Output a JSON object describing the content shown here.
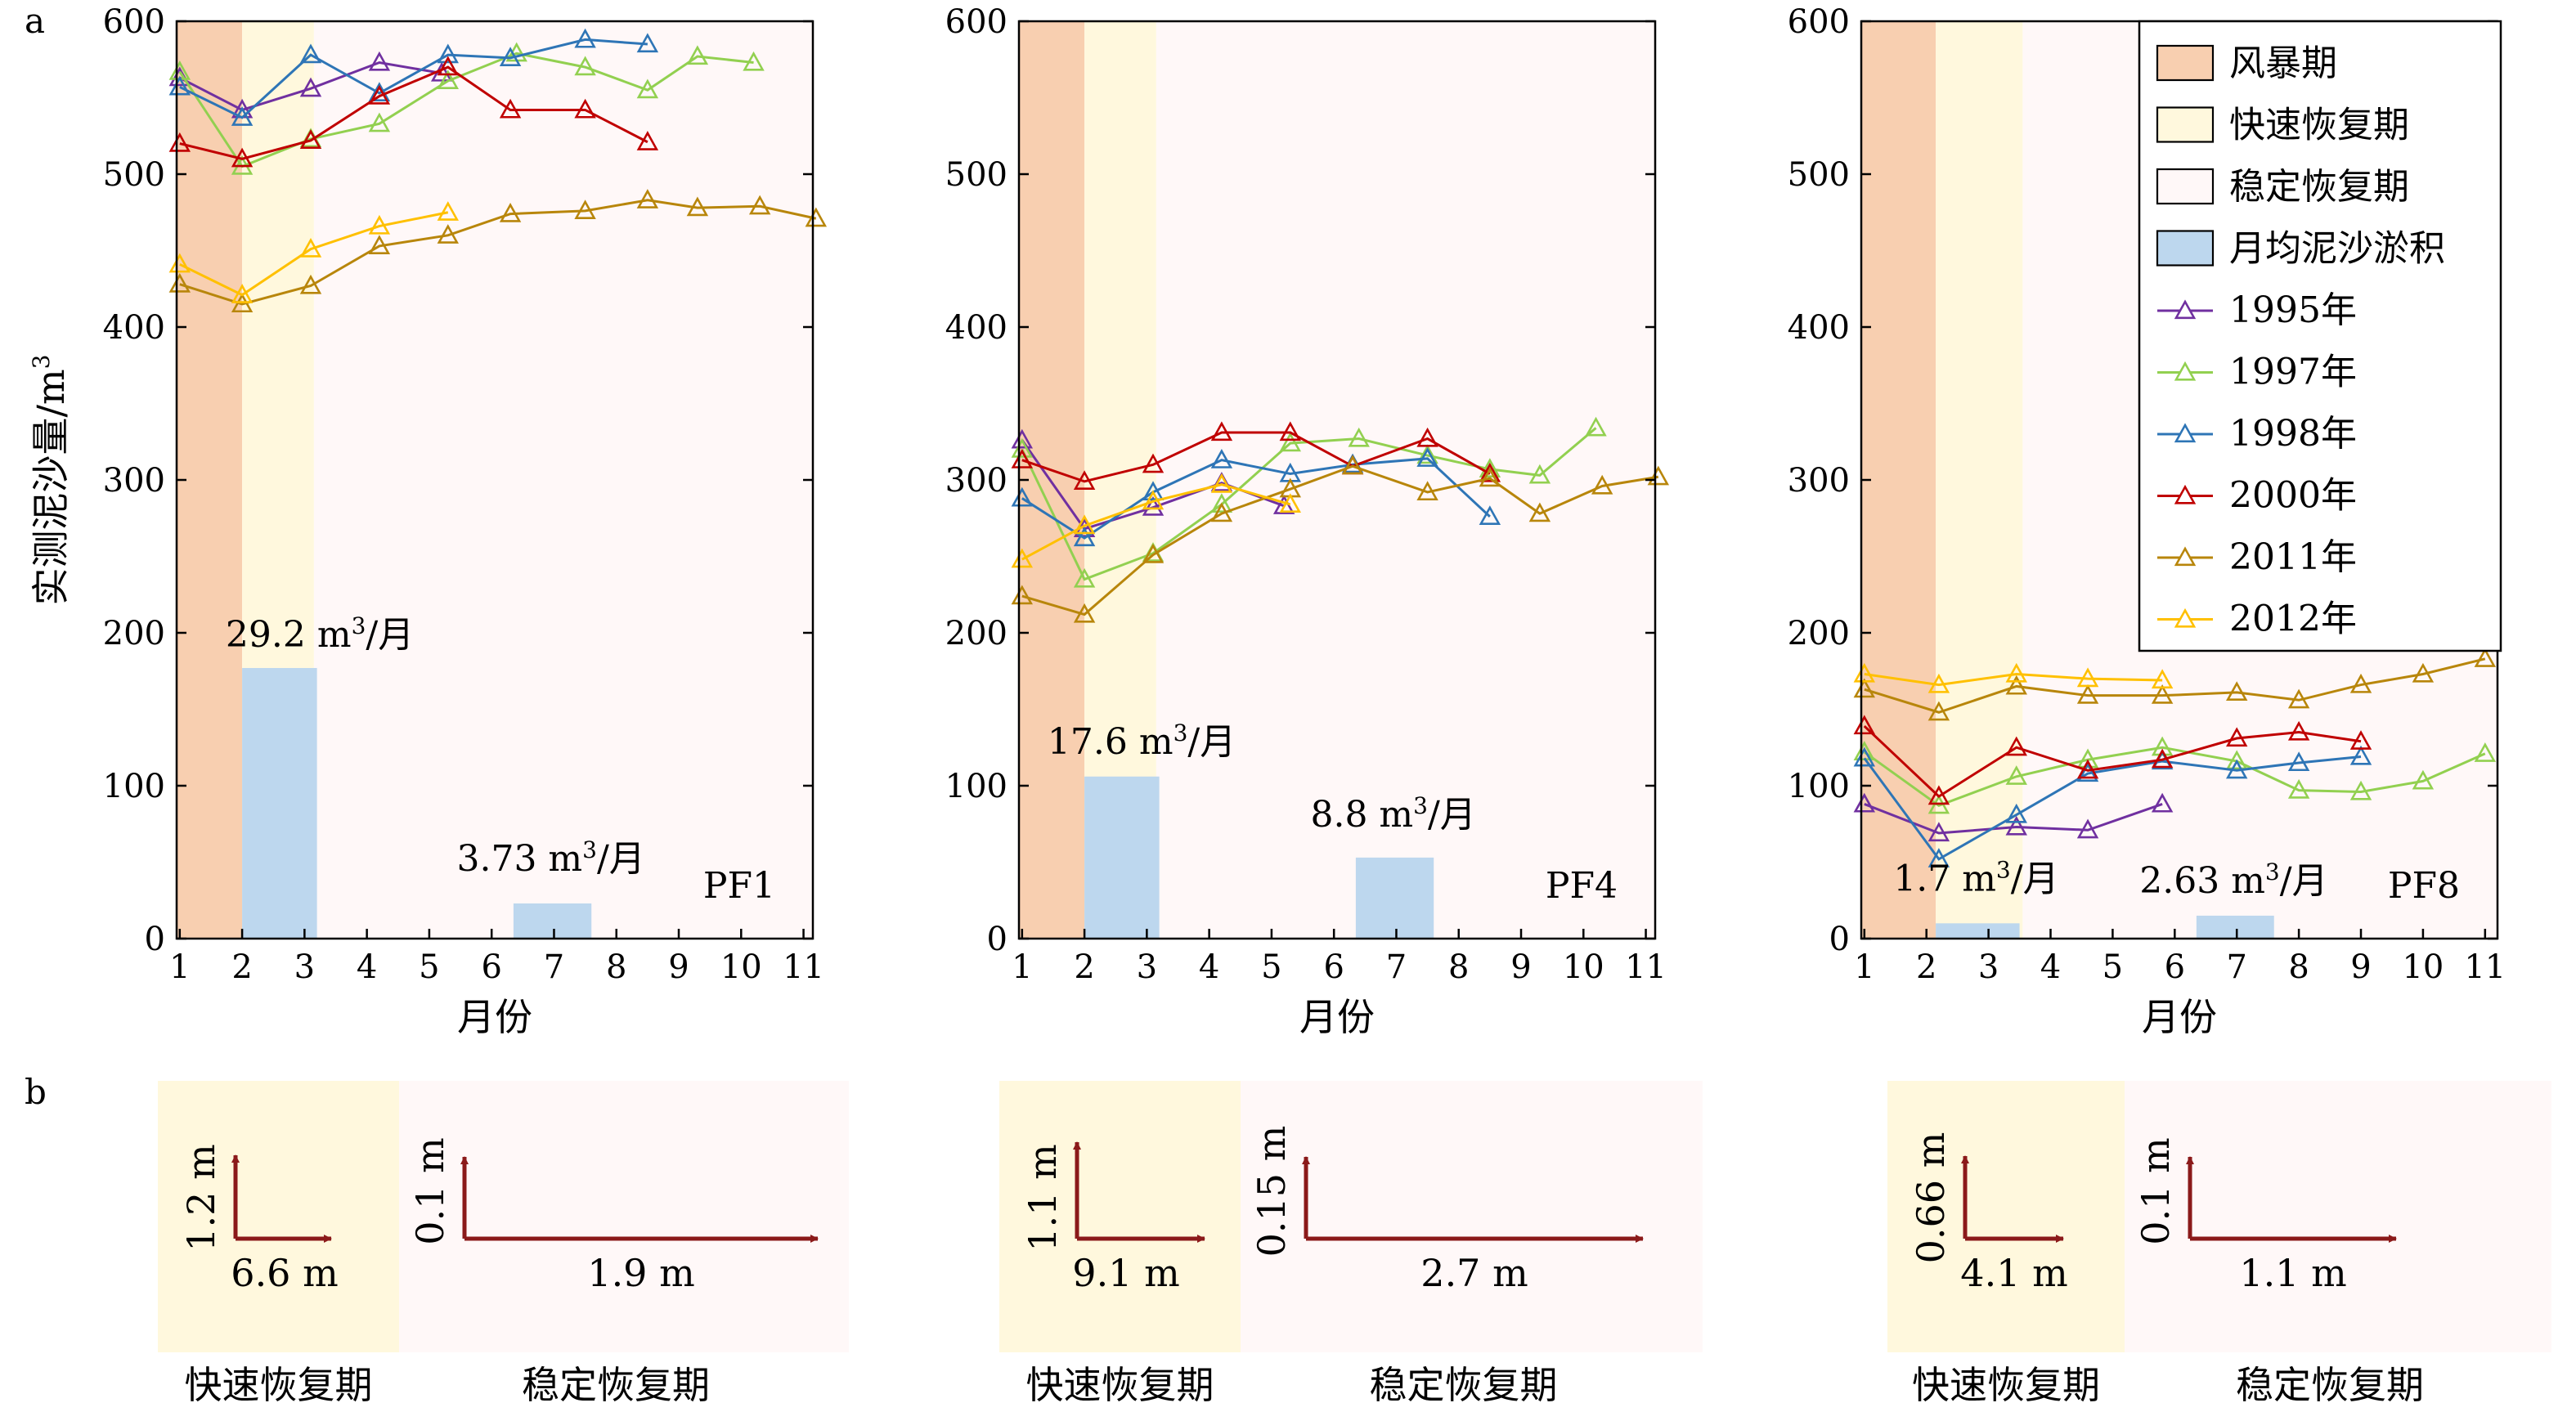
{
  "panel_labels": {
    "a": "a",
    "b": "b"
  },
  "colors": {
    "storm": "#f8cfb0",
    "fast": "#fff8dd",
    "stable": "#fff8f8",
    "bar": "#bdd7ee",
    "arrow": "#8b1a1a",
    "series": {
      "1995": "#7030a0",
      "1997": "#92d050",
      "1998": "#2e75b6",
      "2000": "#c00000",
      "2011": "#b8860b",
      "2012": "#ffc000"
    }
  },
  "chart_data": [
    {
      "type": "line",
      "panel": "PF1",
      "profile_label": "PF1",
      "xlabel": "月份",
      "ylabel": "实测泥沙量/m",
      "ylabel_sup": "3",
      "x_ticks": [
        1,
        2,
        3,
        4,
        5,
        6,
        7,
        8,
        9,
        10,
        11
      ],
      "y_ticks": [
        0,
        100,
        200,
        300,
        400,
        500,
        600
      ],
      "xlim": [
        0.95,
        11.15
      ],
      "ylim": [
        0,
        600
      ],
      "periods": {
        "storm": [
          0.95,
          2.0
        ],
        "fast": [
          2.0,
          3.15
        ],
        "stable": [
          3.15,
          11.15
        ]
      },
      "bars": [
        {
          "x0": 2.0,
          "x1": 3.2,
          "value": 177,
          "label": "29.2 m",
          "label_sup": "3",
          "label_suffix": "/月"
        },
        {
          "x0": 6.35,
          "x1": 7.6,
          "value": 23,
          "label": "3.73 m",
          "label_sup": "3",
          "label_suffix": "/月"
        }
      ],
      "series": [
        {
          "name": "1995年",
          "key": "1995",
          "x": [
            1,
            2.0,
            3.1,
            4.2,
            5.2
          ],
          "y": [
            563,
            542,
            556,
            573,
            566
          ]
        },
        {
          "name": "1997年",
          "key": "1997",
          "x": [
            1,
            2.0,
            3.1,
            4.2,
            5.3,
            6.4,
            7.5,
            8.5,
            9.3,
            10.2
          ],
          "y": [
            567,
            505,
            523,
            533,
            561,
            579,
            570,
            555,
            577,
            573
          ]
        },
        {
          "name": "1998年",
          "key": "1998",
          "x": [
            1,
            2.0,
            3.1,
            4.2,
            5.3,
            6.3,
            7.5,
            8.5
          ],
          "y": [
            557,
            537,
            578,
            553,
            578,
            576,
            588,
            585
          ]
        },
        {
          "name": "2000年",
          "key": "2000",
          "x": [
            1,
            2.0,
            3.1,
            4.2,
            5.3,
            6.3,
            7.5,
            8.5
          ],
          "y": [
            520,
            510,
            522,
            551,
            570,
            542,
            542,
            521
          ]
        },
        {
          "name": "2011年",
          "key": "2011",
          "x": [
            1,
            2.0,
            3.1,
            4.2,
            5.3,
            6.3,
            7.5,
            8.5,
            9.3,
            10.3,
            11.2
          ],
          "y": [
            428,
            415,
            427,
            453,
            460,
            474,
            476,
            483,
            478,
            479,
            471
          ]
        },
        {
          "name": "2012年",
          "key": "2012",
          "x": [
            1,
            2.0,
            3.1,
            4.2,
            5.3
          ],
          "y": [
            441,
            421,
            451,
            466,
            475
          ]
        }
      ]
    },
    {
      "type": "line",
      "panel": "PF4",
      "profile_label": "PF4",
      "xlabel": "月份",
      "x_ticks": [
        1,
        2,
        3,
        4,
        5,
        6,
        7,
        8,
        9,
        10,
        11
      ],
      "y_ticks": [
        0,
        100,
        200,
        300,
        400,
        500,
        600
      ],
      "xlim": [
        0.95,
        11.15
      ],
      "ylim": [
        0,
        600
      ],
      "periods": {
        "storm": [
          0.95,
          2.0
        ],
        "fast": [
          2.0,
          3.15
        ],
        "stable": [
          3.15,
          11.15
        ]
      },
      "bars": [
        {
          "x0": 2.0,
          "x1": 3.2,
          "value": 106,
          "label": "17.6 m",
          "label_sup": "3",
          "label_suffix": "/月"
        },
        {
          "x0": 6.35,
          "x1": 7.6,
          "value": 53,
          "label": "8.8 m",
          "label_sup": "3",
          "label_suffix": "/月"
        }
      ],
      "series": [
        {
          "name": "1995年",
          "key": "1995",
          "x": [
            1,
            2.0,
            3.1,
            4.2,
            5.2
          ],
          "y": [
            326,
            268,
            282,
            298,
            283
          ]
        },
        {
          "name": "1997年",
          "key": "1997",
          "x": [
            1,
            2.0,
            3.1,
            4.2,
            5.3,
            6.4,
            7.5,
            8.5,
            9.3,
            10.2
          ],
          "y": [
            320,
            235,
            252,
            284,
            324,
            327,
            316,
            307,
            303,
            334
          ]
        },
        {
          "name": "1998年",
          "key": "1998",
          "x": [
            1,
            2.0,
            3.1,
            4.2,
            5.3,
            6.3,
            7.5,
            8.5
          ],
          "y": [
            288,
            262,
            292,
            313,
            304,
            310,
            314,
            276
          ]
        },
        {
          "name": "2000年",
          "key": "2000",
          "x": [
            1,
            2.0,
            3.1,
            4.2,
            5.3,
            6.3,
            7.5,
            8.5
          ],
          "y": [
            313,
            299,
            310,
            331,
            331,
            309,
            327,
            304
          ]
        },
        {
          "name": "2011年",
          "key": "2011",
          "x": [
            1,
            2.0,
            3.1,
            4.2,
            5.3,
            6.3,
            7.5,
            8.5,
            9.3,
            10.3,
            11.2
          ],
          "y": [
            224,
            212,
            251,
            278,
            294,
            309,
            292,
            301,
            278,
            296,
            302
          ]
        },
        {
          "name": "2012年",
          "key": "2012",
          "x": [
            1,
            2.0,
            3.1,
            4.2,
            5.3
          ],
          "y": [
            248,
            270,
            286,
            297,
            284
          ]
        }
      ]
    },
    {
      "type": "line",
      "panel": "PF8",
      "profile_label": "PF8",
      "xlabel": "月份",
      "x_ticks": [
        1,
        2,
        3,
        4,
        5,
        6,
        7,
        8,
        9,
        10,
        11
      ],
      "y_ticks": [
        0,
        100,
        200,
        300,
        400,
        500,
        600
      ],
      "xlim": [
        0.95,
        11.2
      ],
      "ylim": [
        0,
        600
      ],
      "periods": {
        "storm": [
          0.95,
          2.15
        ],
        "fast": [
          2.15,
          3.55
        ],
        "stable": [
          3.55,
          11.2
        ]
      },
      "bars": [
        {
          "x0": 2.15,
          "x1": 3.5,
          "value": 10,
          "label": "1.7 m",
          "label_sup": "3",
          "label_suffix": "/月"
        },
        {
          "x0": 6.35,
          "x1": 7.6,
          "value": 15,
          "label": "2.63 m",
          "label_sup": "3",
          "label_suffix": "/月"
        }
      ],
      "series": [
        {
          "name": "1995年",
          "key": "1995",
          "x": [
            1,
            2.2,
            3.45,
            4.6,
            5.8
          ],
          "y": [
            88,
            69,
            73,
            71,
            88
          ]
        },
        {
          "name": "1997年",
          "key": "1997",
          "x": [
            1,
            2.2,
            3.45,
            4.6,
            5.8,
            7.0,
            8.0,
            9.0,
            10.0,
            11.0
          ],
          "y": [
            122,
            87,
            106,
            117,
            125,
            116,
            97,
            96,
            103,
            121
          ]
        },
        {
          "name": "1998年",
          "key": "1998",
          "x": [
            1,
            2.2,
            3.45,
            4.6,
            5.8,
            7.0,
            8.0,
            9.0
          ],
          "y": [
            118,
            52,
            81,
            108,
            116,
            110,
            115,
            119
          ]
        },
        {
          "name": "2000年",
          "key": "2000",
          "x": [
            1,
            2.2,
            3.45,
            4.6,
            5.8,
            7.0,
            8.0,
            9.0
          ],
          "y": [
            139,
            93,
            125,
            110,
            117,
            131,
            135,
            129
          ]
        },
        {
          "name": "2011年",
          "key": "2011",
          "x": [
            1,
            2.2,
            3.45,
            4.6,
            5.8,
            7.0,
            8.0,
            9.0,
            10.0,
            11.0
          ],
          "y": [
            163,
            148,
            165,
            159,
            159,
            161,
            156,
            166,
            173,
            183
          ]
        },
        {
          "name": "2012年",
          "key": "2012",
          "x": [
            1,
            2.2,
            3.45,
            4.6,
            5.8
          ],
          "y": [
            173,
            166,
            173,
            170,
            169
          ]
        }
      ],
      "legend": {
        "placement": "top-right",
        "patches": [
          {
            "label": "风暴期",
            "color_key": "storm"
          },
          {
            "label": "快速恢复期",
            "color_key": "fast"
          },
          {
            "label": "稳定恢复期",
            "color_key": "stable"
          },
          {
            "label": "月均泥沙淤积",
            "color_key": "bar"
          }
        ],
        "lines": [
          "1995年",
          "1997年",
          "1998年",
          "2000年",
          "2011年",
          "2012年"
        ]
      }
    }
  ],
  "panel_b": [
    {
      "fast": {
        "vertical": "1.2 m",
        "horizontal": "6.6 m"
      },
      "stable": {
        "vertical": "0.1 m",
        "horizontal": "1.9 m"
      },
      "fast_label": "快速恢复期",
      "stable_label": "稳定恢复期"
    },
    {
      "fast": {
        "vertical": "1.1 m",
        "horizontal": "9.1 m"
      },
      "stable": {
        "vertical": "0.15 m",
        "horizontal": "2.7 m"
      },
      "fast_label": "快速恢复期",
      "stable_label": "稳定恢复期"
    },
    {
      "fast": {
        "vertical": "0.66 m",
        "horizontal": "4.1 m"
      },
      "stable": {
        "vertical": "0.1 m",
        "horizontal": "1.1 m"
      },
      "fast_label": "快速恢复期",
      "stable_label": "稳定恢复期"
    }
  ]
}
